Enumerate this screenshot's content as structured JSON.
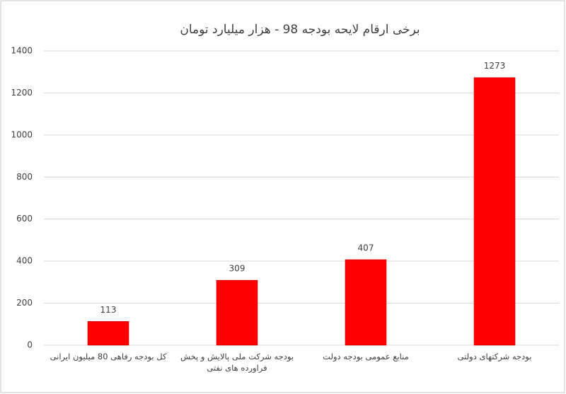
{
  "chart_data": {
    "type": "bar",
    "title": "برخی ارقام لایحه بودجه 98 - هزار میلیارد تومان",
    "categories": [
      "کل بودجه رفاهی 80 میلیون ایرانی",
      "بودجه شرکت ملی پالایش و پخش فراورده های نفتی",
      "منابع عمومی بودجه دولت",
      "بودجه شرکتهای دولتی"
    ],
    "values": [
      113,
      309,
      407,
      1273
    ],
    "color": "#ff0000",
    "ylim": [
      0,
      1400
    ],
    "yticks": [
      0,
      200,
      400,
      600,
      800,
      1000,
      1200,
      1400
    ],
    "grid": true
  }
}
